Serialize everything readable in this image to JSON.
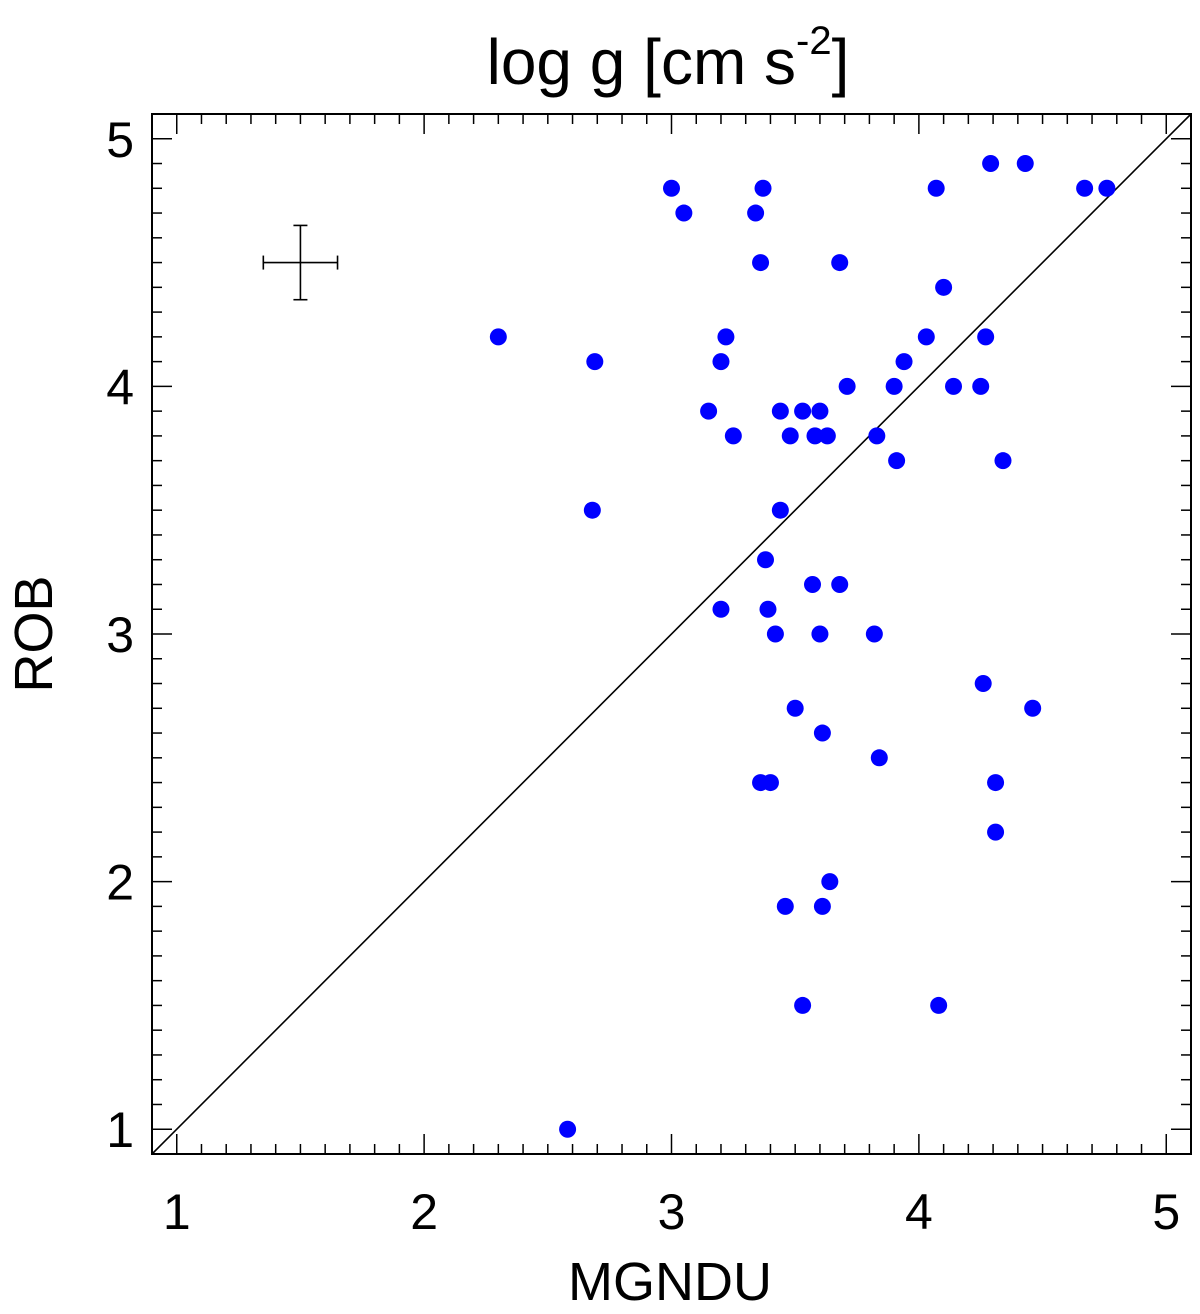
{
  "chart_data": {
    "type": "scatter",
    "title": "log g [cm s",
    "title_superscript": "-2",
    "title_close": "]",
    "xlabel": "MGNDU",
    "ylabel": "ROB",
    "xlim": [
      0.9,
      5.1
    ],
    "ylim": [
      0.9,
      5.1
    ],
    "xticks": [
      "1",
      "2",
      "3",
      "4",
      "5"
    ],
    "yticks": [
      "1",
      "2",
      "3",
      "4",
      "5"
    ],
    "grid": false,
    "legend": "none",
    "marker_color": "#0000ff",
    "reference_line": "y = x",
    "error_bar": {
      "x": 1.5,
      "y": 4.5,
      "xerr": 0.15,
      "yerr": 0.15
    },
    "series": [
      {
        "points": [
          [
            2.3,
            4.2
          ],
          [
            2.58,
            1.0
          ],
          [
            2.68,
            3.5
          ],
          [
            2.69,
            4.1
          ],
          [
            3.0,
            4.8
          ],
          [
            3.05,
            4.7
          ],
          [
            3.15,
            3.9
          ],
          [
            3.2,
            3.1
          ],
          [
            3.2,
            4.1
          ],
          [
            3.22,
            4.2
          ],
          [
            3.25,
            3.8
          ],
          [
            3.34,
            4.7
          ],
          [
            3.36,
            4.5
          ],
          [
            3.36,
            2.4
          ],
          [
            3.37,
            4.8
          ],
          [
            3.38,
            3.3
          ],
          [
            3.39,
            3.1
          ],
          [
            3.4,
            2.4
          ],
          [
            3.42,
            3.0
          ],
          [
            3.44,
            3.9
          ],
          [
            3.44,
            3.5
          ],
          [
            3.46,
            1.9
          ],
          [
            3.48,
            3.8
          ],
          [
            3.5,
            2.7
          ],
          [
            3.53,
            3.9
          ],
          [
            3.53,
            1.5
          ],
          [
            3.57,
            3.2
          ],
          [
            3.58,
            3.8
          ],
          [
            3.6,
            3.0
          ],
          [
            3.6,
            3.9
          ],
          [
            3.61,
            2.6
          ],
          [
            3.61,
            1.9
          ],
          [
            3.63,
            3.8
          ],
          [
            3.64,
            2.0
          ],
          [
            3.68,
            3.2
          ],
          [
            3.68,
            4.5
          ],
          [
            3.71,
            4.0
          ],
          [
            3.82,
            3.0
          ],
          [
            3.83,
            3.8
          ],
          [
            3.84,
            2.5
          ],
          [
            3.9,
            4.0
          ],
          [
            3.91,
            3.7
          ],
          [
            3.94,
            4.1
          ],
          [
            4.03,
            4.2
          ],
          [
            4.07,
            4.8
          ],
          [
            4.08,
            1.5
          ],
          [
            4.1,
            4.4
          ],
          [
            4.14,
            4.0
          ],
          [
            4.25,
            4.0
          ],
          [
            4.26,
            2.8
          ],
          [
            4.27,
            4.2
          ],
          [
            4.29,
            4.9
          ],
          [
            4.31,
            2.4
          ],
          [
            4.31,
            2.2
          ],
          [
            4.34,
            3.7
          ],
          [
            4.43,
            4.9
          ],
          [
            4.46,
            2.7
          ],
          [
            4.67,
            4.8
          ],
          [
            4.76,
            4.8
          ]
        ]
      }
    ]
  }
}
